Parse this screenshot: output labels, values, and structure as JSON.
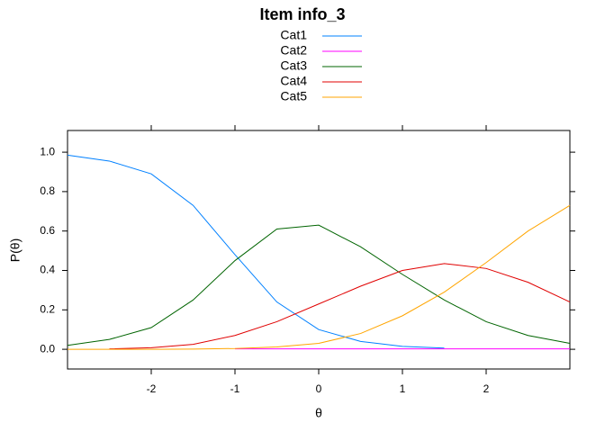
{
  "chart_data": {
    "type": "line",
    "title": "Item info_3",
    "x_label": "θ",
    "y_label": "P(θ)",
    "x": [
      -3,
      -2.5,
      -2,
      -1.5,
      -1,
      -0.5,
      0,
      0.5,
      1,
      1.5,
      2,
      2.5,
      3
    ],
    "series": [
      {
        "name": "Cat1",
        "color": "#0080ff",
        "values": [
          0.985,
          0.955,
          0.89,
          0.73,
          0.48,
          0.24,
          0.1,
          0.04,
          0.015,
          0.006,
          null,
          null,
          null
        ]
      },
      {
        "name": "Cat2",
        "color": "#ff00ff",
        "values": [
          null,
          null,
          null,
          null,
          0.002,
          0.002,
          0.002,
          0.002,
          0.002,
          0.002,
          0.002,
          0.002,
          0.002
        ]
      },
      {
        "name": "Cat3",
        "color": "#006400",
        "values": [
          0.02,
          0.05,
          0.11,
          0.25,
          0.45,
          0.61,
          0.63,
          0.52,
          0.38,
          0.25,
          0.14,
          0.07,
          0.03
        ]
      },
      {
        "name": "Cat4",
        "color": "#e00000",
        "values": [
          null,
          0.002,
          0.008,
          0.025,
          0.07,
          0.14,
          0.23,
          0.32,
          0.4,
          0.435,
          0.41,
          0.34,
          0.24
        ]
      },
      {
        "name": "Cat5",
        "color": "#ffa500",
        "values": [
          0,
          0,
          0,
          0.001,
          0.004,
          0.012,
          0.03,
          0.08,
          0.17,
          0.29,
          0.44,
          0.6,
          0.73
        ]
      }
    ],
    "xlim": [
      -3,
      3
    ],
    "ylim": [
      -0.1,
      1.11
    ],
    "xticks": [
      -2,
      -1,
      0,
      1,
      2
    ],
    "yticks": [
      {
        "value": 0,
        "label": "0.0"
      },
      {
        "value": 0.2,
        "label": "0.2"
      },
      {
        "value": 0.4,
        "label": "0.4"
      },
      {
        "value": 0.6,
        "label": "0.6"
      },
      {
        "value": 0.8,
        "label": "0.8"
      },
      {
        "value": 1,
        "label": "1.0"
      }
    ]
  }
}
